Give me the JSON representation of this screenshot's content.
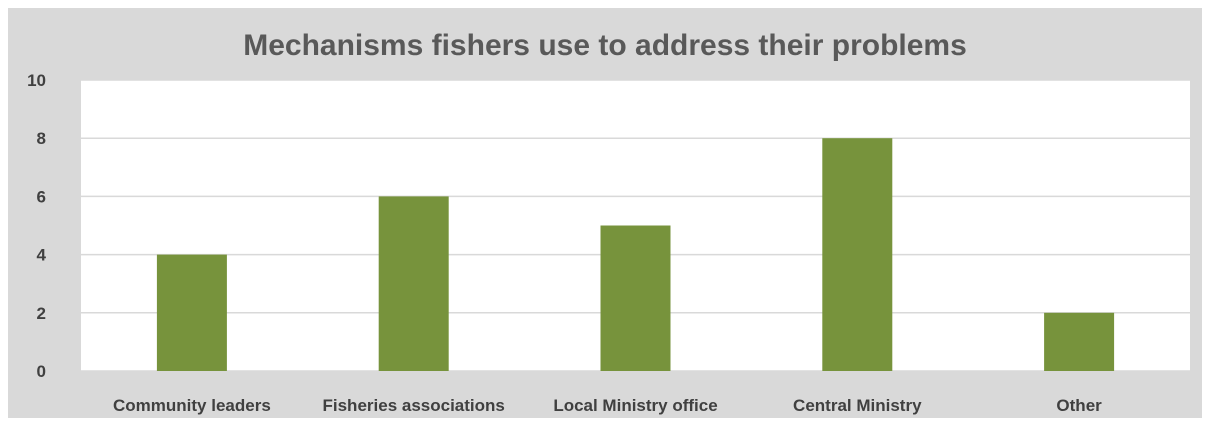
{
  "chart_data": {
    "type": "bar",
    "title": "Mechanisms fishers use to address their problems",
    "categories": [
      "Community leaders",
      "Fisheries associations",
      "Local Ministry office",
      "Central Ministry",
      "Other"
    ],
    "values": [
      4,
      6,
      5,
      8,
      2
    ],
    "ylim": [
      0,
      10
    ],
    "yticks": [
      0,
      2,
      4,
      6,
      8,
      10
    ],
    "grid": true,
    "legend": "none",
    "colors": {
      "bar": "#77933c",
      "frame": "#d9d9d9",
      "plot_area": "#ffffff",
      "gridline": "#d9d9d9",
      "title_text": "#595959",
      "tick_text": "#404040"
    }
  }
}
